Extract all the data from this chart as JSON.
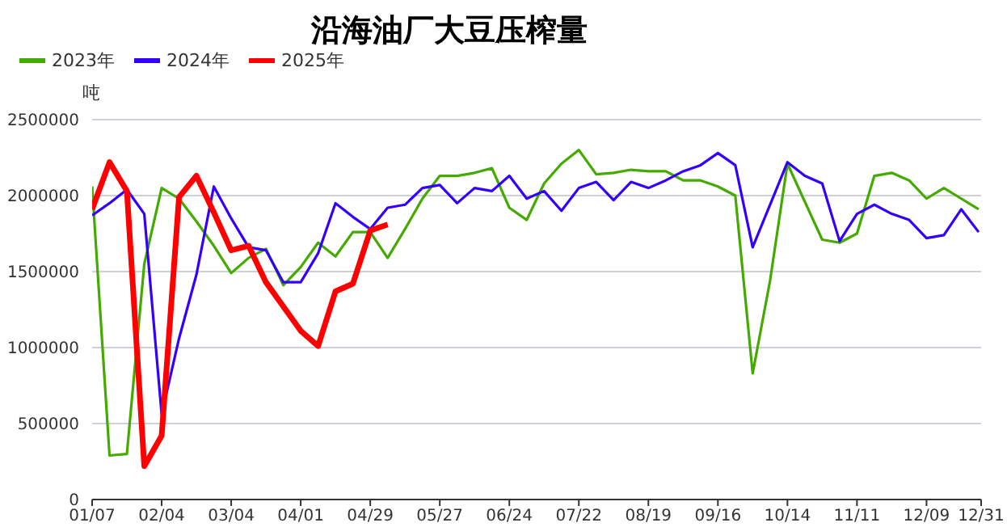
{
  "chart_data": {
    "type": "line",
    "title": "沿海油厂大豆压榨量",
    "ylabel": "吨",
    "x": [
      "--01-07",
      "--01-14",
      "--01-21",
      "--01-28",
      "--02-04",
      "--02-11",
      "--02-18",
      "--02-25",
      "--03-04",
      "--03-11",
      "--03-18",
      "--03-25",
      "--04-01",
      "--04-08",
      "--04-15",
      "--04-22",
      "--04-29",
      "--05-06",
      "--05-13",
      "--05-20",
      "--05-27",
      "--06-03",
      "--06-10",
      "--06-17",
      "--06-24",
      "--07-01",
      "--07-08",
      "--07-15",
      "--07-22",
      "--07-29",
      "--08-05",
      "--08-12",
      "--08-19",
      "--08-26",
      "--09-02",
      "--09-09",
      "--09-16",
      "--09-23",
      "--09-30",
      "--10-07",
      "--10-14",
      "--10-21",
      "--10-28",
      "--11-04",
      "--11-11",
      "--11-18",
      "--11-25",
      "--12-02",
      "--12-09",
      "--12-16",
      "--12-23",
      "--12-30"
    ],
    "series": [
      {
        "name": "2023年",
        "color": "#44aa00",
        "values": [
          2060000,
          290000,
          300000,
          1550000,
          2050000,
          1980000,
          1830000,
          1670000,
          1490000,
          1590000,
          1650000,
          1410000,
          1530000,
          1690000,
          1600000,
          1760000,
          1760000,
          1590000,
          1780000,
          1980000,
          2130000,
          2130000,
          2150000,
          2180000,
          1920000,
          1840000,
          2080000,
          2210000,
          2300000,
          2140000,
          2150000,
          2170000,
          2160000,
          2160000,
          2100000,
          2100000,
          2060000,
          2000000,
          830000,
          1440000,
          2210000,
          1960000,
          1710000,
          1690000,
          1750000,
          2130000,
          2150000,
          2100000,
          1980000,
          2050000,
          1980000,
          1910000
        ]
      },
      {
        "name": "2024年",
        "color": "#3300ff",
        "values": [
          1870000,
          1950000,
          2040000,
          1880000,
          560000,
          1060000,
          1480000,
          2060000,
          1850000,
          1660000,
          1640000,
          1430000,
          1430000,
          1620000,
          1950000,
          1860000,
          1780000,
          1920000,
          1940000,
          2050000,
          2070000,
          1950000,
          2050000,
          2030000,
          2130000,
          1980000,
          2030000,
          1900000,
          2050000,
          2090000,
          1970000,
          2090000,
          2050000,
          2100000,
          2160000,
          2200000,
          2280000,
          2200000,
          1660000,
          1940000,
          2220000,
          2130000,
          2080000,
          1700000,
          1880000,
          1940000,
          1880000,
          1840000,
          1720000,
          1740000,
          1910000,
          1760000
        ]
      },
      {
        "name": "2025年",
        "color": "#ff0000",
        "values": [
          1910000,
          2220000,
          2030000,
          220000,
          420000,
          1990000,
          2130000,
          1890000,
          1640000,
          1670000,
          1430000,
          1270000,
          1110000,
          1010000,
          1370000,
          1420000,
          1770000,
          1810000,
          null,
          null,
          null,
          null,
          null,
          null,
          null,
          null,
          null,
          null,
          null,
          null,
          null,
          null,
          null,
          null,
          null,
          null,
          null,
          null,
          null,
          null,
          null,
          null,
          null,
          null,
          null,
          null,
          null,
          null,
          null,
          null,
          null,
          null
        ]
      }
    ],
    "xlim": [
      "--01-07",
      "--12-31"
    ],
    "xticks": [
      {
        "value": "--01-07",
        "label": "01/07"
      },
      {
        "value": "--02-04",
        "label": "02/04"
      },
      {
        "value": "--03-04",
        "label": "03/04"
      },
      {
        "value": "--04-01",
        "label": "04/01"
      },
      {
        "value": "--04-29",
        "label": "04/29"
      },
      {
        "value": "--05-27",
        "label": "05/27"
      },
      {
        "value": "--06-24",
        "label": "06/24"
      },
      {
        "value": "--07-22",
        "label": "07/22"
      },
      {
        "value": "--08-19",
        "label": "08/19"
      },
      {
        "value": "--09-16",
        "label": "09/16"
      },
      {
        "value": "--10-14",
        "label": "10/14"
      },
      {
        "value": "--11-11",
        "label": "11/11"
      },
      {
        "value": "--12-09",
        "label": "12/09"
      },
      {
        "value": "--12-31",
        "label": "12/31"
      }
    ],
    "ylim": [
      0,
      2500000
    ],
    "yticks": [
      0,
      500000,
      1000000,
      1500000,
      2000000,
      2500000
    ],
    "grid": "y",
    "legend": "top left",
    "marker": "none",
    "line_style": "solid"
  }
}
